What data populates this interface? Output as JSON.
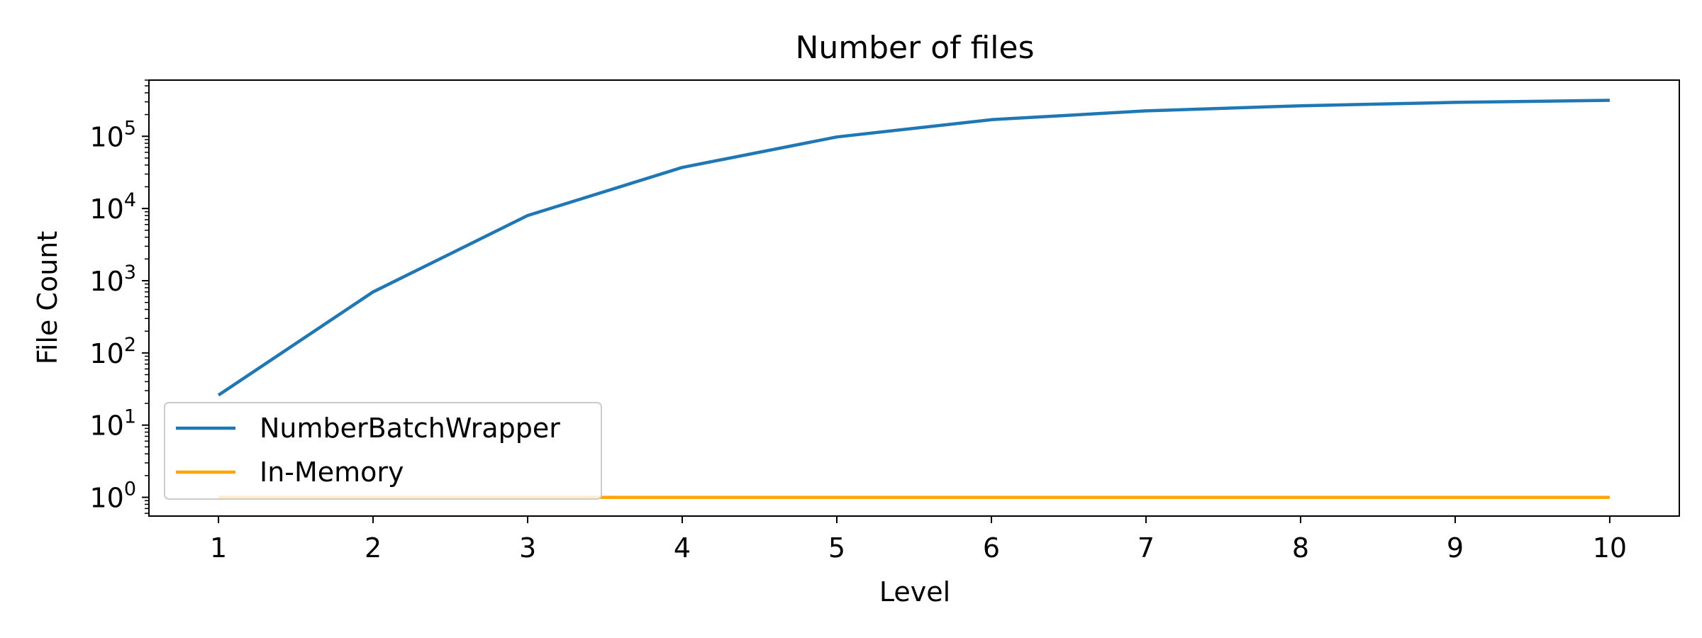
{
  "chart_data": {
    "type": "line",
    "title": "Number of files",
    "xlabel": "Level",
    "ylabel": "File Count",
    "yscale": "log",
    "x": [
      1,
      2,
      3,
      4,
      5,
      6,
      7,
      8,
      9,
      10
    ],
    "xticks": [
      1,
      2,
      3,
      4,
      5,
      6,
      7,
      8,
      9,
      10
    ],
    "xlim": [
      0.55,
      10.45
    ],
    "ylim": [
      0.55,
      600000
    ],
    "yticks": [
      {
        "value": 1,
        "base": "10",
        "exp": "0"
      },
      {
        "value": 10,
        "base": "10",
        "exp": "1"
      },
      {
        "value": 100,
        "base": "10",
        "exp": "2"
      },
      {
        "value": 1000,
        "base": "10",
        "exp": "3"
      },
      {
        "value": 10000,
        "base": "10",
        "exp": "4"
      },
      {
        "value": 100000,
        "base": "10",
        "exp": "5"
      }
    ],
    "grid": false,
    "legend_position": "lower-left",
    "series": [
      {
        "name": "NumberBatchWrapper",
        "color": "#1f77b4",
        "values": [
          26,
          700,
          8000,
          37000,
          98000,
          170000,
          225000,
          265000,
          295000,
          315000
        ]
      },
      {
        "name": "In-Memory",
        "color": "#ffa500",
        "values": [
          1,
          1,
          1,
          1,
          1,
          1,
          1,
          1,
          1,
          1
        ]
      }
    ]
  }
}
